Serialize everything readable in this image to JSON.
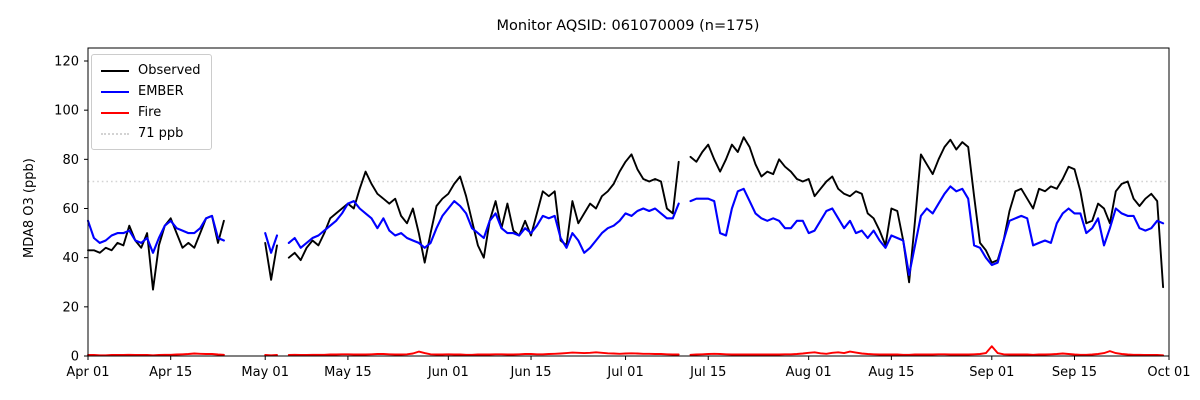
{
  "chart_data": {
    "type": "line",
    "title": "Monitor AQSID: 061070009 (n=175)",
    "monitor_aqsid": "061070009",
    "n_points": 175,
    "xlabel": "",
    "ylabel": "MDA8 O3 (ppb)",
    "ylim": [
      0,
      124
    ],
    "yticks": [
      0,
      20,
      40,
      60,
      80,
      100,
      120
    ],
    "grid": false,
    "x_range": "Apr 01 to Oct 01",
    "n_days": 183,
    "xticks": [
      {
        "label": "Apr 01",
        "day": 0
      },
      {
        "label": "Apr 15",
        "day": 14
      },
      {
        "label": "May 01",
        "day": 30
      },
      {
        "label": "May 15",
        "day": 44
      },
      {
        "label": "Jun 01",
        "day": 61
      },
      {
        "label": "Jun 15",
        "day": 75
      },
      {
        "label": "Jul 01",
        "day": 91
      },
      {
        "label": "Jul 15",
        "day": 105
      },
      {
        "label": "Aug 01",
        "day": 122
      },
      {
        "label": "Aug 15",
        "day": 136
      },
      {
        "label": "Sep 01",
        "day": 153
      },
      {
        "label": "Sep 15",
        "day": 167
      },
      {
        "label": "Oct 01",
        "day": 183
      }
    ],
    "missing_days": [
      "Apr 25-30",
      "May 04",
      "Jul 11"
    ],
    "threshold": {
      "value": 71,
      "label": "71 ppb",
      "color": "#d3d3d3",
      "style": "dotted"
    },
    "legend": {
      "position": "upper left",
      "entries": [
        {
          "label": "Observed",
          "color": "#000000",
          "style": "solid"
        },
        {
          "label": "EMBER",
          "color": "#0000ff",
          "style": "solid"
        },
        {
          "label": "Fire",
          "color": "#ff0000",
          "style": "solid"
        },
        {
          "label": "71 ppb",
          "color": "#d3d3d3",
          "style": "dotted"
        }
      ]
    },
    "series": [
      {
        "name": "Observed",
        "color": "#000000",
        "width": 1.9,
        "values": [
          43,
          43,
          42,
          44,
          43,
          46,
          45,
          53,
          47,
          44,
          50,
          27,
          45,
          53,
          56,
          50,
          44,
          46,
          44,
          50,
          56,
          57,
          46,
          55,
          null,
          null,
          null,
          null,
          null,
          null,
          46,
          31,
          45,
          null,
          40,
          42,
          39,
          44,
          47,
          45,
          50,
          56,
          58,
          60,
          62,
          60,
          68,
          75,
          70,
          66,
          64,
          62,
          64,
          57,
          54,
          60,
          50,
          38,
          50,
          61,
          64,
          66,
          70,
          73,
          65,
          55,
          45,
          40,
          55,
          63,
          52,
          62,
          51,
          49,
          55,
          49,
          58,
          67,
          65,
          67,
          47,
          45,
          63,
          54,
          58,
          62,
          60,
          65,
          67,
          70,
          75,
          79,
          82,
          76,
          72,
          71,
          72,
          71,
          60,
          58,
          79,
          null,
          81,
          79,
          83,
          86,
          80,
          75,
          80,
          86,
          83,
          89,
          85,
          78,
          73,
          75,
          74,
          80,
          77,
          75,
          72,
          71,
          72,
          65,
          68,
          71,
          73,
          68,
          66,
          65,
          67,
          66,
          58,
          56,
          51,
          45,
          60,
          59,
          47,
          30,
          55,
          82,
          78,
          74,
          80,
          85,
          88,
          84,
          87,
          85,
          65,
          46,
          43,
          38,
          39,
          47,
          59,
          67,
          68,
          64,
          60,
          68,
          67,
          69,
          68,
          72,
          77,
          76,
          67,
          54,
          55,
          62,
          60,
          54,
          67,
          70,
          71,
          64,
          61,
          64,
          66,
          63,
          28
        ]
      },
      {
        "name": "EMBER",
        "color": "#0000ff",
        "width": 2.1,
        "values": [
          55,
          48,
          46,
          47,
          49,
          50,
          50,
          51,
          47,
          46,
          48,
          42,
          48,
          53,
          55,
          52,
          51,
          50,
          50,
          52,
          56,
          57,
          48,
          47,
          null,
          null,
          null,
          null,
          null,
          null,
          50,
          42,
          49,
          null,
          46,
          48,
          44,
          46,
          48,
          49,
          51,
          53,
          55,
          58,
          62,
          63,
          60,
          58,
          56,
          52,
          56,
          51,
          49,
          50,
          48,
          47,
          46,
          44,
          46,
          52,
          57,
          60,
          63,
          61,
          58,
          52,
          50,
          48,
          55,
          58,
          52,
          50,
          50,
          49,
          52,
          50,
          53,
          57,
          56,
          57,
          48,
          44,
          50,
          47,
          42,
          44,
          47,
          50,
          52,
          53,
          55,
          58,
          57,
          59,
          60,
          59,
          60,
          58,
          56,
          56,
          62,
          null,
          63,
          64,
          64,
          64,
          63,
          50,
          49,
          60,
          67,
          68,
          63,
          58,
          56,
          55,
          56,
          55,
          52,
          52,
          55,
          55,
          50,
          51,
          55,
          59,
          60,
          56,
          52,
          55,
          50,
          51,
          48,
          51,
          47,
          44,
          49,
          48,
          47,
          33,
          45,
          57,
          60,
          58,
          62,
          66,
          69,
          67,
          68,
          64,
          45,
          44,
          40,
          37,
          38,
          47,
          55,
          56,
          57,
          56,
          45,
          46,
          47,
          46,
          54,
          58,
          60,
          58,
          58,
          50,
          52,
          56,
          45,
          52,
          60,
          58,
          57,
          57,
          52,
          51,
          52,
          55,
          54
        ]
      },
      {
        "name": "Fire",
        "color": "#ff0000",
        "width": 1.9,
        "values": [
          0.4,
          0.4,
          0.3,
          0.3,
          0.4,
          0.4,
          0.4,
          0.5,
          0.4,
          0.4,
          0.4,
          0.3,
          0.4,
          0.5,
          0.5,
          0.6,
          0.7,
          0.8,
          1.0,
          0.9,
          0.8,
          0.8,
          0.6,
          0.5,
          null,
          null,
          null,
          null,
          null,
          null,
          0.4,
          0.3,
          0.4,
          null,
          0.4,
          0.5,
          0.4,
          0.4,
          0.5,
          0.5,
          0.5,
          0.6,
          0.6,
          0.7,
          0.7,
          0.6,
          0.6,
          0.6,
          0.7,
          0.8,
          0.8,
          0.7,
          0.6,
          0.6,
          0.7,
          1.0,
          1.8,
          1.2,
          0.7,
          0.6,
          0.6,
          0.7,
          0.6,
          0.6,
          0.5,
          0.5,
          0.6,
          0.6,
          0.6,
          0.7,
          0.7,
          0.6,
          0.6,
          0.7,
          0.8,
          0.8,
          0.7,
          0.7,
          0.8,
          0.9,
          1.0,
          1.2,
          1.4,
          1.3,
          1.2,
          1.3,
          1.5,
          1.3,
          1.1,
          1.0,
          0.9,
          1.0,
          1.1,
          1.0,
          0.9,
          0.9,
          0.8,
          0.8,
          0.7,
          0.6,
          0.6,
          null,
          0.5,
          0.6,
          0.7,
          0.8,
          0.9,
          0.8,
          0.7,
          0.6,
          0.6,
          0.6,
          0.6,
          0.6,
          0.6,
          0.6,
          0.6,
          0.6,
          0.7,
          0.7,
          0.8,
          1.0,
          1.3,
          1.5,
          1.1,
          0.9,
          1.3,
          1.5,
          1.2,
          1.8,
          1.4,
          1.0,
          0.8,
          0.7,
          0.6,
          0.6,
          0.6,
          0.6,
          0.5,
          0.5,
          0.6,
          0.6,
          0.6,
          0.6,
          0.7,
          0.7,
          0.6,
          0.6,
          0.6,
          0.6,
          0.7,
          0.8,
          1.2,
          4.0,
          1.2,
          0.7,
          0.6,
          0.6,
          0.6,
          0.6,
          0.5,
          0.6,
          0.6,
          0.7,
          0.8,
          1.0,
          0.8,
          0.6,
          0.5,
          0.5,
          0.6,
          0.8,
          1.2,
          2.0,
          1.2,
          0.8,
          0.6,
          0.5,
          0.5,
          0.4,
          0.4,
          0.4,
          0.3
        ]
      }
    ]
  }
}
